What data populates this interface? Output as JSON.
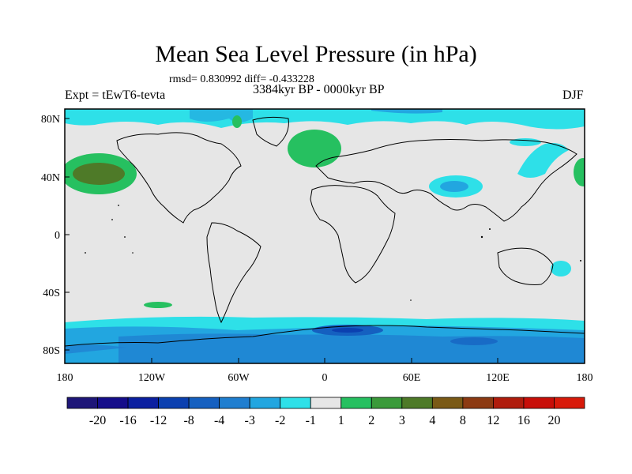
{
  "title": "Mean Sea Level Pressure (in hPa)",
  "stats": "rmsd= 0.830992 diff= -0.433228",
  "left_label": "Expt = tEwT6-tevta",
  "center_label": "3384kyr BP - 0000kyr BP",
  "right_label": "DJF",
  "map": {
    "x_ticks": [
      "180",
      "120W",
      "60W",
      "0",
      "60E",
      "120E",
      "180"
    ],
    "y_ticks": [
      "80N",
      "40N",
      "0",
      "40S",
      "80S"
    ],
    "ocean_neutral_color": "#e6e6e6",
    "coastline_color": "#000000"
  },
  "colorbar": {
    "labels": [
      "-20",
      "-16",
      "-12",
      "-8",
      "-4",
      "-3",
      "-2",
      "-1",
      "1",
      "2",
      "3",
      "4",
      "8",
      "12",
      "16",
      "20"
    ],
    "colors": [
      "#1e1678",
      "#150d8a",
      "#0b1fa0",
      "#0b40b0",
      "#1560c0",
      "#1f7ed0",
      "#22a6e0",
      "#2ee0e8",
      "#e6e6e6",
      "#26c060",
      "#3a9a3a",
      "#4e7a28",
      "#7a5a16",
      "#8c3a12",
      "#b01c0c",
      "#c80e08",
      "#d81a0a"
    ]
  }
}
